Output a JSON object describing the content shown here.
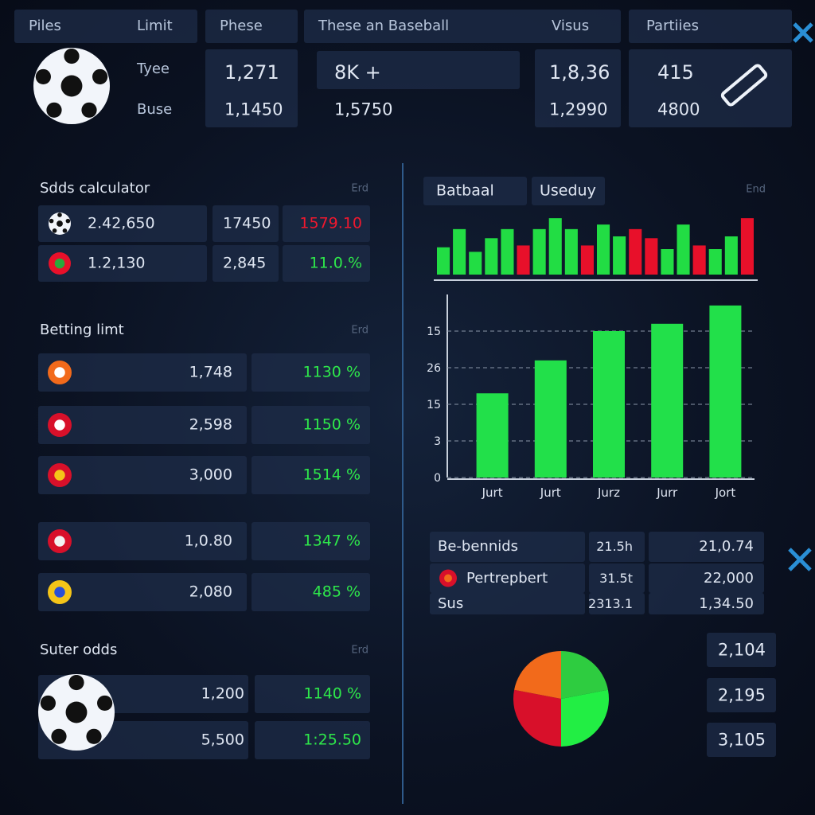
{
  "header": {
    "columns": [
      "Piles",
      "Limit",
      "Phese",
      "These an Baseball",
      "Visus",
      "Partiies"
    ],
    "row_labels": [
      "Tyee",
      "Buse"
    ],
    "rows": [
      [
        "1,271",
        "8K +",
        "1,8,36",
        "415"
      ],
      [
        "1,1450",
        "1,5750",
        "1,2990",
        "4800"
      ]
    ]
  },
  "odds_calculator": {
    "title": "Sdds calculator",
    "action": "Erd",
    "rows": [
      [
        "2.42,650",
        "17450",
        "1579.10"
      ],
      [
        "1.2,130",
        "2,845",
        "11.0.%"
      ]
    ]
  },
  "betting_limit": {
    "title": "Betting limt",
    "action": "Erd",
    "rows": [
      [
        "1,748",
        "1130 %"
      ],
      [
        "2,598",
        "1150 %"
      ],
      [
        "3,000",
        "1514 %"
      ],
      [
        "1,0.80",
        "1347 %"
      ],
      [
        "2,080",
        "485 %"
      ]
    ]
  },
  "suter_odds": {
    "title": "Suter odds",
    "action": "Erd",
    "rows": [
      [
        "1,200",
        "1140 %"
      ],
      [
        "5,500",
        "1:25.50"
      ]
    ]
  },
  "chart_tabs": {
    "tabs": [
      "Batbaal",
      "Useduy"
    ],
    "action": "End"
  },
  "stats_table": {
    "rows": [
      [
        "Be-bennids",
        "21.5h",
        "21,0.74"
      ],
      [
        "Pertrepbert",
        "31.5t",
        "22,000"
      ],
      [
        "Sus",
        "2313.1",
        "1,34.50"
      ]
    ]
  },
  "side_values": [
    "2,104",
    "2,195",
    "3,105"
  ],
  "chart_data": [
    {
      "type": "bar",
      "values": [
        30,
        50,
        25,
        40,
        50,
        32,
        50,
        62,
        50,
        32,
        55,
        42,
        50,
        40,
        28,
        55,
        32,
        28,
        42,
        62
      ],
      "colors": [
        "#22dd44",
        "#22dd44",
        "#22dd44",
        "#22dd44",
        "#22dd44",
        "#e8102a",
        "#22dd44",
        "#22dd44",
        "#22dd44",
        "#e8102a",
        "#22dd44",
        "#22dd44",
        "#e8102a",
        "#e8102a",
        "#22dd44",
        "#22dd44",
        "#e8102a",
        "#22dd44",
        "#22dd44",
        "#e8102a"
      ],
      "ylim": [
        0,
        70
      ]
    },
    {
      "type": "bar",
      "categories": [
        "Jurt",
        "Jurt",
        "Jurz",
        "Jurr",
        "Jort"
      ],
      "values": [
        23,
        32,
        40,
        42,
        47
      ],
      "color": "#22e04a",
      "ylim": [
        0,
        50
      ],
      "yticks": [
        0,
        {
          "value": 10,
          "label": "3"
        },
        {
          "value": 20,
          "label": "15"
        },
        {
          "value": 30,
          "label": "26"
        },
        {
          "value": 40,
          "label": "15"
        }
      ],
      "grid": true
    },
    {
      "type": "pie",
      "values": [
        22,
        28,
        28,
        22
      ],
      "colors": [
        "#2ecc40",
        "#22ee44",
        "#d8102a",
        "#f26a1b"
      ]
    }
  ]
}
